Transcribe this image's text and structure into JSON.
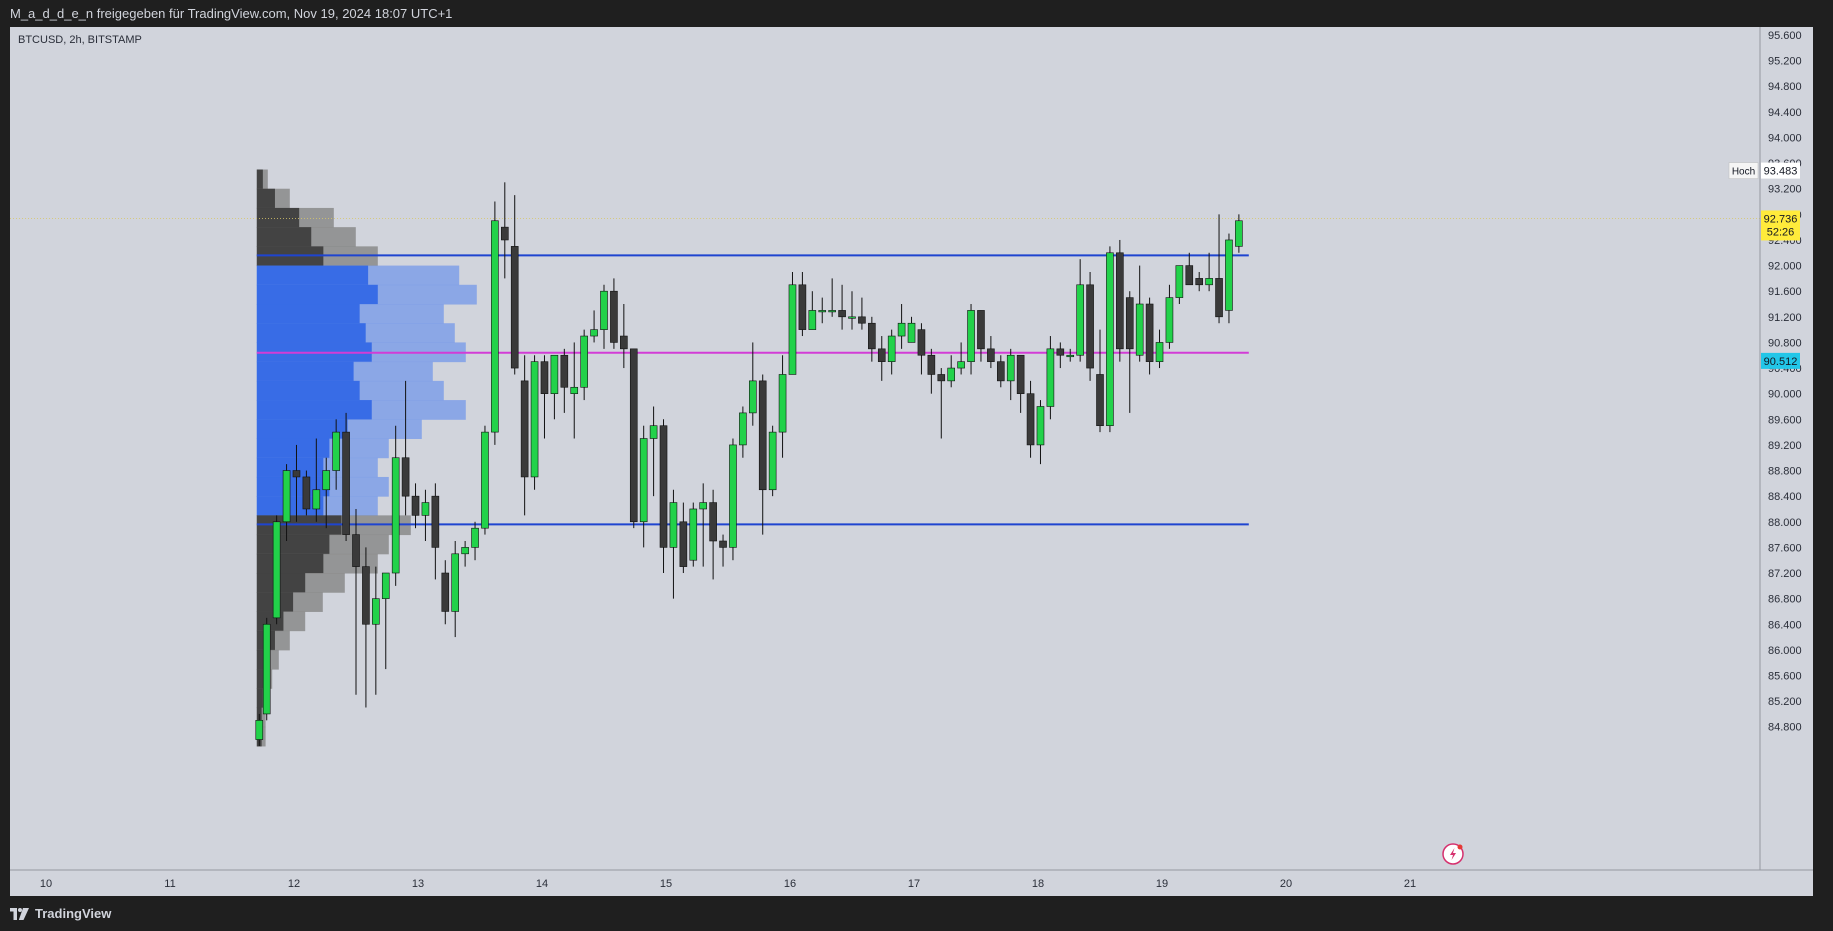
{
  "header": {
    "text": "M_a_d_d_e_n freigegeben für TradingView.com, Nov 19, 2024 18:07 UTC+1"
  },
  "chart_title": "BTCUSD, 2h, BITSTAMP",
  "footer": {
    "brand": "TradingView",
    "logo_icon": "tradingview-logo-icon"
  },
  "colors": {
    "background": "#d1d4dc",
    "up_candle": "#22d24a",
    "down_candle": "#3a3a3a",
    "support_line": "#1e44d0",
    "poc_line": "#d23cd6",
    "price_label": "#ffeb3b",
    "poc_label": "#22c6e8"
  },
  "chart_data": {
    "type": "candlestick",
    "symbol": "BTCUSD",
    "interval": "2h",
    "exchange": "BITSTAMP",
    "y_axis": {
      "range": [
        84500,
        95800
      ],
      "ticks": [
        "95.600",
        "95.200",
        "94.800",
        "94.400",
        "94.000",
        "93.600",
        "93.200",
        "92.800",
        "92.400",
        "92.000",
        "91.600",
        "91.200",
        "90.800",
        "90.400",
        "90.000",
        "89.600",
        "89.200",
        "88.800",
        "88.400",
        "88.000",
        "87.600",
        "87.200",
        "86.800",
        "86.400",
        "86.000",
        "85.600",
        "85.200",
        "84.800"
      ]
    },
    "x_axis": {
      "ticks": [
        "10",
        "11",
        "12",
        "13",
        "14",
        "15",
        "16",
        "17",
        "18",
        "19",
        "20",
        "21"
      ],
      "tick_day_positions": [
        10,
        11,
        12,
        13,
        14,
        15,
        16,
        17,
        18,
        19,
        20,
        21
      ]
    },
    "markers": {
      "high": {
        "label": "Hoch",
        "value": "93.483",
        "price": 93483
      },
      "current": {
        "value": "92.736",
        "countdown": "52:26",
        "price": 92736
      },
      "poc": {
        "value": "90.512",
        "price": 90512
      }
    },
    "horizontal_lines": [
      {
        "price": 92160,
        "color": "#1e44d0",
        "start_day": 11.7,
        "end_day": 19.7
      },
      {
        "price": 90640,
        "color": "#d23cd6",
        "start_day": 11.7,
        "end_day": 19.7
      },
      {
        "price": 87960,
        "color": "#1e44d0",
        "start_day": 11.7,
        "end_day": 19.7
      }
    ],
    "volume_profile": {
      "start_day": 11.7,
      "bins": [
        {
          "low": 93200,
          "high": 93500,
          "vol": 0.05
        },
        {
          "low": 92900,
          "high": 93200,
          "vol": 0.15
        },
        {
          "low": 92600,
          "high": 92900,
          "vol": 0.35
        },
        {
          "low": 92300,
          "high": 92600,
          "vol": 0.45
        },
        {
          "low": 92000,
          "high": 92300,
          "vol": 0.55
        },
        {
          "low": 91700,
          "high": 92000,
          "vol": 0.92
        },
        {
          "low": 91400,
          "high": 91700,
          "vol": 1.0
        },
        {
          "low": 91100,
          "high": 91400,
          "vol": 0.85
        },
        {
          "low": 90800,
          "high": 91100,
          "vol": 0.9
        },
        {
          "low": 90500,
          "high": 90800,
          "vol": 0.95
        },
        {
          "low": 90200,
          "high": 90500,
          "vol": 0.8
        },
        {
          "low": 89900,
          "high": 90200,
          "vol": 0.85
        },
        {
          "low": 89600,
          "high": 89900,
          "vol": 0.95
        },
        {
          "low": 89300,
          "high": 89600,
          "vol": 0.75
        },
        {
          "low": 89000,
          "high": 89300,
          "vol": 0.6
        },
        {
          "low": 88700,
          "high": 89000,
          "vol": 0.55
        },
        {
          "low": 88400,
          "high": 88700,
          "vol": 0.6
        },
        {
          "low": 88100,
          "high": 88400,
          "vol": 0.55
        },
        {
          "low": 87800,
          "high": 88100,
          "vol": 0.7
        },
        {
          "low": 87500,
          "high": 87800,
          "vol": 0.6
        },
        {
          "low": 87200,
          "high": 87500,
          "vol": 0.55
        },
        {
          "low": 86900,
          "high": 87200,
          "vol": 0.4
        },
        {
          "low": 86600,
          "high": 86900,
          "vol": 0.3
        },
        {
          "low": 86300,
          "high": 86600,
          "vol": 0.22
        },
        {
          "low": 86000,
          "high": 86300,
          "vol": 0.15
        },
        {
          "low": 85700,
          "high": 86000,
          "vol": 0.1
        },
        {
          "low": 85400,
          "high": 85700,
          "vol": 0.07
        },
        {
          "low": 85100,
          "high": 85400,
          "vol": 0.05
        },
        {
          "low": 84800,
          "high": 85100,
          "vol": 0.04
        },
        {
          "low": 84500,
          "high": 84800,
          "vol": 0.04
        }
      ],
      "value_area": [
        88000,
        92100
      ]
    },
    "candles": [
      {
        "t": 11.72,
        "o": 84600,
        "h": 85000,
        "l": 84500,
        "c": 84900
      },
      {
        "t": 11.78,
        "o": 85000,
        "h": 86500,
        "l": 84900,
        "c": 86400
      },
      {
        "t": 11.86,
        "o": 86500,
        "h": 88100,
        "l": 86400,
        "c": 88000
      },
      {
        "t": 11.94,
        "o": 88000,
        "h": 88900,
        "l": 87700,
        "c": 88800
      },
      {
        "t": 12.02,
        "o": 88800,
        "h": 89200,
        "l": 88000,
        "c": 88700
      },
      {
        "t": 12.1,
        "o": 88700,
        "h": 88800,
        "l": 88100,
        "c": 88200
      },
      {
        "t": 12.18,
        "o": 88200,
        "h": 89300,
        "l": 88000,
        "c": 88500
      },
      {
        "t": 12.26,
        "o": 88500,
        "h": 89000,
        "l": 87900,
        "c": 88800
      },
      {
        "t": 12.34,
        "o": 88800,
        "h": 89600,
        "l": 88500,
        "c": 89400
      },
      {
        "t": 12.42,
        "o": 89400,
        "h": 89700,
        "l": 87700,
        "c": 87800
      },
      {
        "t": 12.5,
        "o": 87800,
        "h": 88200,
        "l": 85300,
        "c": 87300
      },
      {
        "t": 12.58,
        "o": 87300,
        "h": 87600,
        "l": 85100,
        "c": 86400
      },
      {
        "t": 12.66,
        "o": 86400,
        "h": 87300,
        "l": 85300,
        "c": 86800
      },
      {
        "t": 12.74,
        "o": 86800,
        "h": 87200,
        "l": 85700,
        "c": 87200
      },
      {
        "t": 12.82,
        "o": 87200,
        "h": 89500,
        "l": 87000,
        "c": 89000
      },
      {
        "t": 12.9,
        "o": 89000,
        "h": 90200,
        "l": 88100,
        "c": 88400
      },
      {
        "t": 12.98,
        "o": 88400,
        "h": 88600,
        "l": 87900,
        "c": 88100
      },
      {
        "t": 13.06,
        "o": 88100,
        "h": 88500,
        "l": 87700,
        "c": 88300
      },
      {
        "t": 13.14,
        "o": 88400,
        "h": 88600,
        "l": 87100,
        "c": 87600
      },
      {
        "t": 13.22,
        "o": 87200,
        "h": 87400,
        "l": 86400,
        "c": 86600
      },
      {
        "t": 13.3,
        "o": 86600,
        "h": 87700,
        "l": 86200,
        "c": 87500
      },
      {
        "t": 13.38,
        "o": 87500,
        "h": 87700,
        "l": 87300,
        "c": 87600
      },
      {
        "t": 13.46,
        "o": 87600,
        "h": 88000,
        "l": 87400,
        "c": 87900
      },
      {
        "t": 13.54,
        "o": 87900,
        "h": 89500,
        "l": 87800,
        "c": 89400
      },
      {
        "t": 13.62,
        "o": 89400,
        "h": 93000,
        "l": 89200,
        "c": 92700
      },
      {
        "t": 13.7,
        "o": 92600,
        "h": 93300,
        "l": 91800,
        "c": 92400
      },
      {
        "t": 13.78,
        "o": 92300,
        "h": 93100,
        "l": 90300,
        "c": 90400
      },
      {
        "t": 13.86,
        "o": 90200,
        "h": 90600,
        "l": 88100,
        "c": 88700
      },
      {
        "t": 13.94,
        "o": 88700,
        "h": 90600,
        "l": 88500,
        "c": 90500
      },
      {
        "t": 14.02,
        "o": 90500,
        "h": 90600,
        "l": 89300,
        "c": 90000
      },
      {
        "t": 14.1,
        "o": 90000,
        "h": 90600,
        "l": 89600,
        "c": 90600
      },
      {
        "t": 14.18,
        "o": 90600,
        "h": 90700,
        "l": 89700,
        "c": 90100
      },
      {
        "t": 14.26,
        "o": 90000,
        "h": 90800,
        "l": 89300,
        "c": 90100
      },
      {
        "t": 14.34,
        "o": 90100,
        "h": 91000,
        "l": 89900,
        "c": 90900
      },
      {
        "t": 14.42,
        "o": 90900,
        "h": 91300,
        "l": 90800,
        "c": 91000
      },
      {
        "t": 14.5,
        "o": 91000,
        "h": 91700,
        "l": 90700,
        "c": 91600
      },
      {
        "t": 14.58,
        "o": 91600,
        "h": 91800,
        "l": 90700,
        "c": 90800
      },
      {
        "t": 14.66,
        "o": 90900,
        "h": 91400,
        "l": 90400,
        "c": 90700
      },
      {
        "t": 14.74,
        "o": 90700,
        "h": 90700,
        "l": 87900,
        "c": 88000
      },
      {
        "t": 14.82,
        "o": 88000,
        "h": 89500,
        "l": 87600,
        "c": 89300
      },
      {
        "t": 14.9,
        "o": 89300,
        "h": 89800,
        "l": 88400,
        "c": 89500
      },
      {
        "t": 14.98,
        "o": 89500,
        "h": 89600,
        "l": 87200,
        "c": 87600
      },
      {
        "t": 15.06,
        "o": 87600,
        "h": 88500,
        "l": 86800,
        "c": 88300
      },
      {
        "t": 15.14,
        "o": 88000,
        "h": 88300,
        "l": 87200,
        "c": 87300
      },
      {
        "t": 15.22,
        "o": 87400,
        "h": 88300,
        "l": 87300,
        "c": 88200
      },
      {
        "t": 15.3,
        "o": 88200,
        "h": 88600,
        "l": 87300,
        "c": 88300
      },
      {
        "t": 15.38,
        "o": 88300,
        "h": 88500,
        "l": 87100,
        "c": 87700
      },
      {
        "t": 15.46,
        "o": 87700,
        "h": 87800,
        "l": 87300,
        "c": 87600
      },
      {
        "t": 15.54,
        "o": 87600,
        "h": 89300,
        "l": 87400,
        "c": 89200
      },
      {
        "t": 15.62,
        "o": 89200,
        "h": 89800,
        "l": 89000,
        "c": 89700
      },
      {
        "t": 15.7,
        "o": 89700,
        "h": 90800,
        "l": 89500,
        "c": 90200
      },
      {
        "t": 15.78,
        "o": 90200,
        "h": 90300,
        "l": 87800,
        "c": 88500
      },
      {
        "t": 15.86,
        "o": 88500,
        "h": 89500,
        "l": 88400,
        "c": 89400
      },
      {
        "t": 15.94,
        "o": 89400,
        "h": 90600,
        "l": 89000,
        "c": 90300
      },
      {
        "t": 16.02,
        "o": 90300,
        "h": 91900,
        "l": 90300,
        "c": 91700
      },
      {
        "t": 16.1,
        "o": 91700,
        "h": 91900,
        "l": 90900,
        "c": 91000
      },
      {
        "t": 16.18,
        "o": 91000,
        "h": 91600,
        "l": 91000,
        "c": 91300
      },
      {
        "t": 16.26,
        "o": 91300,
        "h": 91500,
        "l": 91100,
        "c": 91300
      },
      {
        "t": 16.34,
        "o": 91300,
        "h": 91800,
        "l": 91200,
        "c": 91300
      },
      {
        "t": 16.42,
        "o": 91300,
        "h": 91700,
        "l": 91000,
        "c": 91200
      },
      {
        "t": 16.5,
        "o": 91200,
        "h": 91600,
        "l": 91000,
        "c": 91200
      },
      {
        "t": 16.58,
        "o": 91200,
        "h": 91500,
        "l": 91000,
        "c": 91100
      },
      {
        "t": 16.66,
        "o": 91100,
        "h": 91200,
        "l": 90500,
        "c": 90700
      },
      {
        "t": 16.74,
        "o": 90700,
        "h": 90900,
        "l": 90200,
        "c": 90500
      },
      {
        "t": 16.82,
        "o": 90500,
        "h": 91000,
        "l": 90300,
        "c": 90900
      },
      {
        "t": 16.9,
        "o": 90900,
        "h": 91400,
        "l": 90700,
        "c": 91100
      },
      {
        "t": 16.98,
        "o": 90800,
        "h": 91200,
        "l": 90800,
        "c": 91100
      },
      {
        "t": 17.06,
        "o": 91000,
        "h": 91100,
        "l": 90300,
        "c": 90600
      },
      {
        "t": 17.14,
        "o": 90600,
        "h": 90700,
        "l": 90000,
        "c": 90300
      },
      {
        "t": 17.22,
        "o": 90300,
        "h": 90400,
        "l": 89300,
        "c": 90200
      },
      {
        "t": 17.3,
        "o": 90200,
        "h": 90600,
        "l": 90100,
        "c": 90400
      },
      {
        "t": 17.38,
        "o": 90400,
        "h": 90800,
        "l": 90300,
        "c": 90500
      },
      {
        "t": 17.46,
        "o": 90500,
        "h": 91400,
        "l": 90300,
        "c": 91300
      },
      {
        "t": 17.54,
        "o": 91300,
        "h": 91300,
        "l": 90500,
        "c": 90700
      },
      {
        "t": 17.62,
        "o": 90700,
        "h": 90900,
        "l": 90400,
        "c": 90500
      },
      {
        "t": 17.7,
        "o": 90500,
        "h": 90600,
        "l": 90100,
        "c": 90200
      },
      {
        "t": 17.78,
        "o": 90200,
        "h": 90700,
        "l": 89900,
        "c": 90600
      },
      {
        "t": 17.86,
        "o": 90600,
        "h": 90600,
        "l": 89700,
        "c": 90000
      },
      {
        "t": 17.94,
        "o": 90000,
        "h": 90200,
        "l": 89000,
        "c": 89200
      },
      {
        "t": 18.02,
        "o": 89200,
        "h": 89900,
        "l": 88900,
        "c": 89800
      },
      {
        "t": 18.1,
        "o": 89800,
        "h": 90900,
        "l": 89600,
        "c": 90700
      },
      {
        "t": 18.18,
        "o": 90700,
        "h": 90800,
        "l": 90400,
        "c": 90600
      },
      {
        "t": 18.26,
        "o": 90600,
        "h": 90700,
        "l": 90500,
        "c": 90600
      },
      {
        "t": 18.34,
        "o": 90600,
        "h": 92100,
        "l": 90500,
        "c": 91700
      },
      {
        "t": 18.42,
        "o": 91700,
        "h": 91900,
        "l": 90200,
        "c": 90400
      },
      {
        "t": 18.5,
        "o": 90300,
        "h": 91000,
        "l": 89400,
        "c": 89500
      },
      {
        "t": 18.58,
        "o": 89500,
        "h": 92300,
        "l": 89400,
        "c": 92200
      },
      {
        "t": 18.66,
        "o": 92200,
        "h": 92400,
        "l": 90500,
        "c": 90700
      },
      {
        "t": 18.74,
        "o": 91500,
        "h": 91600,
        "l": 89700,
        "c": 90700
      },
      {
        "t": 18.82,
        "o": 90600,
        "h": 92000,
        "l": 90500,
        "c": 91400
      },
      {
        "t": 18.9,
        "o": 91400,
        "h": 91500,
        "l": 90300,
        "c": 90500
      },
      {
        "t": 18.98,
        "o": 90500,
        "h": 91000,
        "l": 90400,
        "c": 90800
      },
      {
        "t": 19.06,
        "o": 90800,
        "h": 91700,
        "l": 90700,
        "c": 91500
      },
      {
        "t": 19.14,
        "o": 91500,
        "h": 92000,
        "l": 91400,
        "c": 92000
      },
      {
        "t": 19.22,
        "o": 92000,
        "h": 92200,
        "l": 91700,
        "c": 91700
      },
      {
        "t": 19.3,
        "o": 91800,
        "h": 91900,
        "l": 91600,
        "c": 91700
      },
      {
        "t": 19.38,
        "o": 91700,
        "h": 92200,
        "l": 91600,
        "c": 91800
      },
      {
        "t": 19.46,
        "o": 91800,
        "h": 92800,
        "l": 91100,
        "c": 91200
      },
      {
        "t": 19.54,
        "o": 91300,
        "h": 92500,
        "l": 91100,
        "c": 92400
      },
      {
        "t": 19.62,
        "o": 92300,
        "h": 92800,
        "l": 92200,
        "c": 92700
      }
    ]
  }
}
